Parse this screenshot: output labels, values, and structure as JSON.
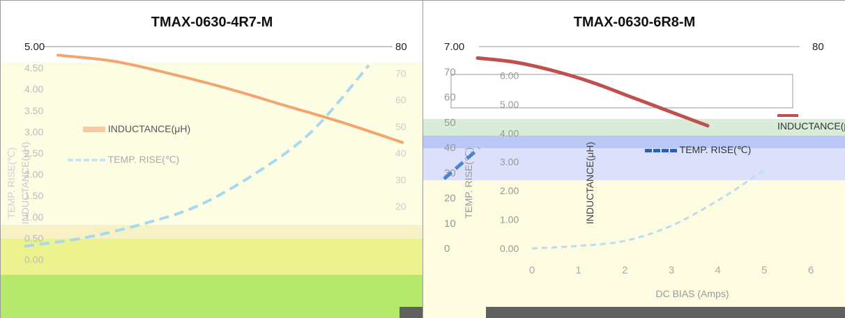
{
  "charts": [
    {
      "title": "TMAX-0630-4R7-M",
      "legend": [
        "INDUCTANCE(μH)",
        "TEMP. RISE(℃)"
      ],
      "y_left_ticks": [
        "5.00",
        "4.50",
        "4.00",
        "3.50",
        "3.00",
        "2.50",
        "2.00",
        "1.50",
        "1.00",
        "0.50",
        "0.00"
      ],
      "y_right_ticks": [
        "80",
        "70",
        "60",
        "50",
        "40",
        "30",
        "20"
      ],
      "y_left_label": "INDUCTANCE(μH)",
      "y_right_label": "TEMP. RISE(℃)"
    },
    {
      "title": "TMAX-0630-6R8-M",
      "legend": [
        "INDUCTANCE(μH)",
        "TEMP. RISE(℃)"
      ],
      "y_left_ticks": [
        "7.00",
        "6.00",
        "5.00",
        "4.00",
        "3.00",
        "2.00",
        "1.00",
        "0.00"
      ],
      "y_right_ticks": [
        "80",
        "70",
        "60",
        "50",
        "40",
        "30",
        "20",
        "10",
        "0"
      ],
      "x_ticks": [
        "0",
        "1",
        "2",
        "3",
        "4",
        "5",
        "6"
      ],
      "xlabel": "DC BIAS  (Amps)",
      "y_left_label": "INDUCTANCE(μH)",
      "y_right_label": "TEMP. RISE(℃)"
    }
  ],
  "chart_data": [
    {
      "type": "line",
      "title": "TMAX-0630-4R7-M",
      "xlabel": "",
      "ylabel": "INDUCTANCE(μH)",
      "ylabel_right": "TEMP. RISE(℃)",
      "ylim": [
        0,
        5
      ],
      "ylim_right": [
        0,
        80
      ],
      "series": [
        {
          "name": "INDUCTANCE(μH)",
          "axis": "left",
          "x": [
            0,
            1,
            2,
            3,
            4,
            5,
            6
          ],
          "values": [
            4.8,
            4.65,
            4.35,
            4.0,
            3.6,
            3.2,
            2.75
          ]
        },
        {
          "name": "TEMP. RISE(℃)",
          "axis": "right",
          "x": [
            0,
            1,
            2,
            3,
            4,
            5,
            6
          ],
          "values": [
            5,
            8,
            13,
            20,
            32,
            48,
            73
          ]
        }
      ],
      "colors": {
        "inductance": "#f4a46e",
        "temp": "#a8d8ee"
      }
    },
    {
      "type": "line",
      "title": "TMAX-0630-6R8-M",
      "xlabel": "DC BIAS  (Amps)",
      "ylabel": "INDUCTANCE(μH)",
      "ylabel_right": "TEMP. RISE(℃)",
      "ylim": [
        0,
        7
      ],
      "ylim_right": [
        0,
        80
      ],
      "series": [
        {
          "name": "INDUCTANCE(μH)",
          "axis": "left",
          "x": [
            0,
            0.5,
            1,
            1.5,
            2,
            2.5,
            3
          ],
          "values": [
            6.75,
            6.6,
            6.3,
            5.9,
            5.4,
            4.9,
            4.4
          ]
        },
        {
          "name": "TEMP. RISE(℃)",
          "axis": "right",
          "x": [
            0,
            1,
            2,
            3,
            4,
            5
          ],
          "values": [
            0,
            1,
            3,
            9,
            19,
            31
          ]
        }
      ],
      "colors": {
        "inductance": "#c0504d",
        "temp": "#4a86d0"
      }
    }
  ]
}
